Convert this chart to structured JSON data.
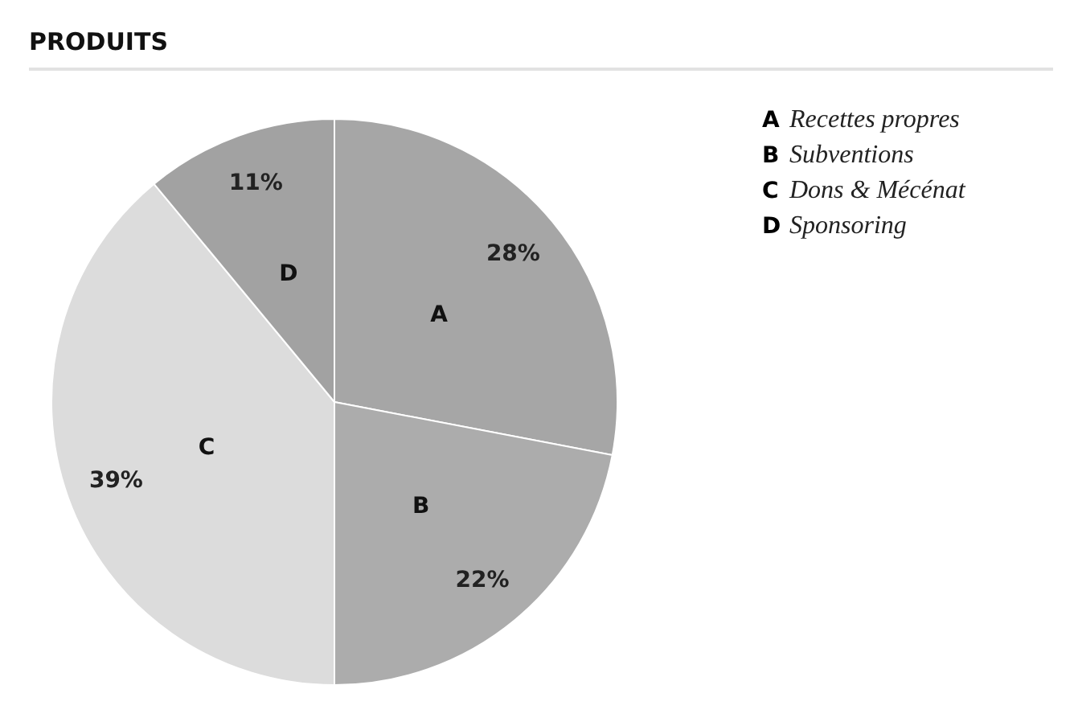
{
  "chart_data": {
    "type": "pie",
    "title": "PRODUITS",
    "categories": [
      "A",
      "B",
      "C",
      "D"
    ],
    "values": [
      28,
      22,
      39,
      11
    ],
    "value_labels": [
      "28%",
      "22%",
      "39%",
      "11%"
    ],
    "colors": [
      "#a6a6a6",
      "#acacac",
      "#dcdcdc",
      "#a2a2a2"
    ],
    "annotations": [
      "Recettes propres",
      "Subventions",
      "Dons & Mécénat",
      "Sponsoring"
    ]
  }
}
